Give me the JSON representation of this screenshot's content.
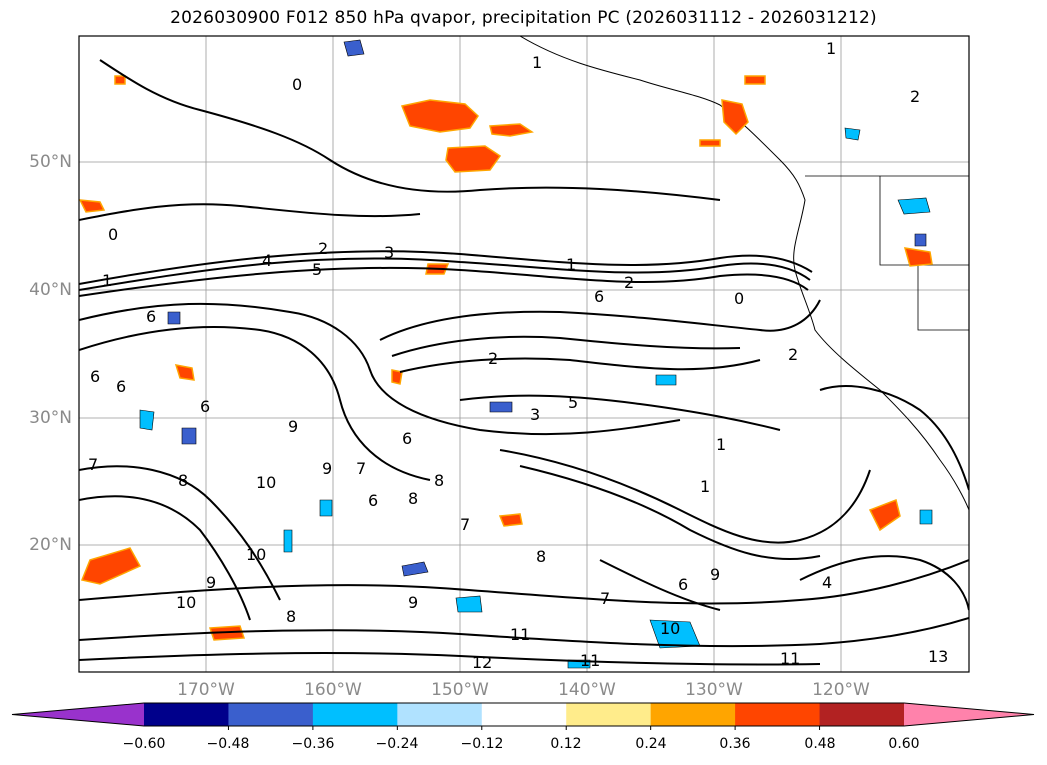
{
  "title": "2026030900 F012 850 hPa qvapor, precipitation PC (2026031112 - 2026031212)",
  "lat_labels": [
    "50°N",
    "40°N",
    "30°N",
    "20°N"
  ],
  "lon_labels": [
    "170°W",
    "160°W",
    "150°W",
    "140°W",
    "130°W",
    "120°W"
  ],
  "colorbar": {
    "ticks": [
      "−0.60",
      "−0.48",
      "−0.36",
      "−0.24",
      "−0.12",
      "0.12",
      "0.24",
      "0.36",
      "0.48",
      "0.60"
    ],
    "colors": [
      "#9932cc",
      "#00008b",
      "#3a5fcd",
      "#00bfff",
      "#b0e2ff",
      "#ffffff",
      "#ffec8b",
      "#ffa500",
      "#ff4500",
      "#b22222",
      "#ff82ab"
    ]
  },
  "contour_labels": [
    "1",
    "0",
    "1",
    "2",
    "0",
    "2",
    "3",
    "4",
    "5",
    "1",
    "1",
    "2",
    "6",
    "0",
    "6",
    "6",
    "2",
    "6",
    "6",
    "6",
    "2",
    "5",
    "3",
    "1",
    "1",
    "7",
    "8",
    "9",
    "10",
    "8",
    "9",
    "7",
    "8",
    "6",
    "7",
    "8",
    "6",
    "9",
    "10",
    "10",
    "9",
    "9",
    "7",
    "8",
    "10",
    "12",
    "11",
    "11",
    "11",
    "13",
    "4"
  ]
}
